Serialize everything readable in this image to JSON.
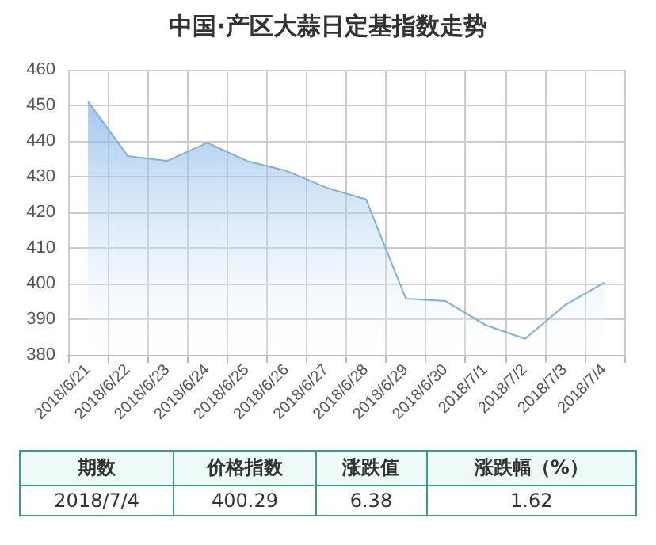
{
  "chart_data": {
    "type": "area",
    "title": "中国·产区大蒜日定基指数走势",
    "categories": [
      "2018/6/21",
      "2018/6/22",
      "2018/6/23",
      "2018/6/24",
      "2018/6/25",
      "2018/6/26",
      "2018/6/27",
      "2018/6/28",
      "2018/6/29",
      "2018/6/30",
      "2018/7/1",
      "2018/7/2",
      "2018/7/3",
      "2018/7/4"
    ],
    "series": [
      {
        "color": "#7ab0e6",
        "values": [
          451.1,
          435.8,
          434.4,
          439.5,
          434.4,
          431.6,
          426.9,
          423.6,
          395.8,
          395.1,
          388.4,
          384.5,
          393.9,
          400.3
        ]
      }
    ],
    "ylim": [
      380,
      460
    ],
    "yticks": [
      380,
      390,
      400,
      410,
      420,
      430,
      440,
      450,
      460
    ],
    "grid": true,
    "marker": "none",
    "annotations": [
      "期数",
      "价格指数",
      "涨跌值",
      "涨跌幅（%）",
      "2018/7/4",
      "400.29",
      "6.38",
      "1.62"
    ]
  }
}
